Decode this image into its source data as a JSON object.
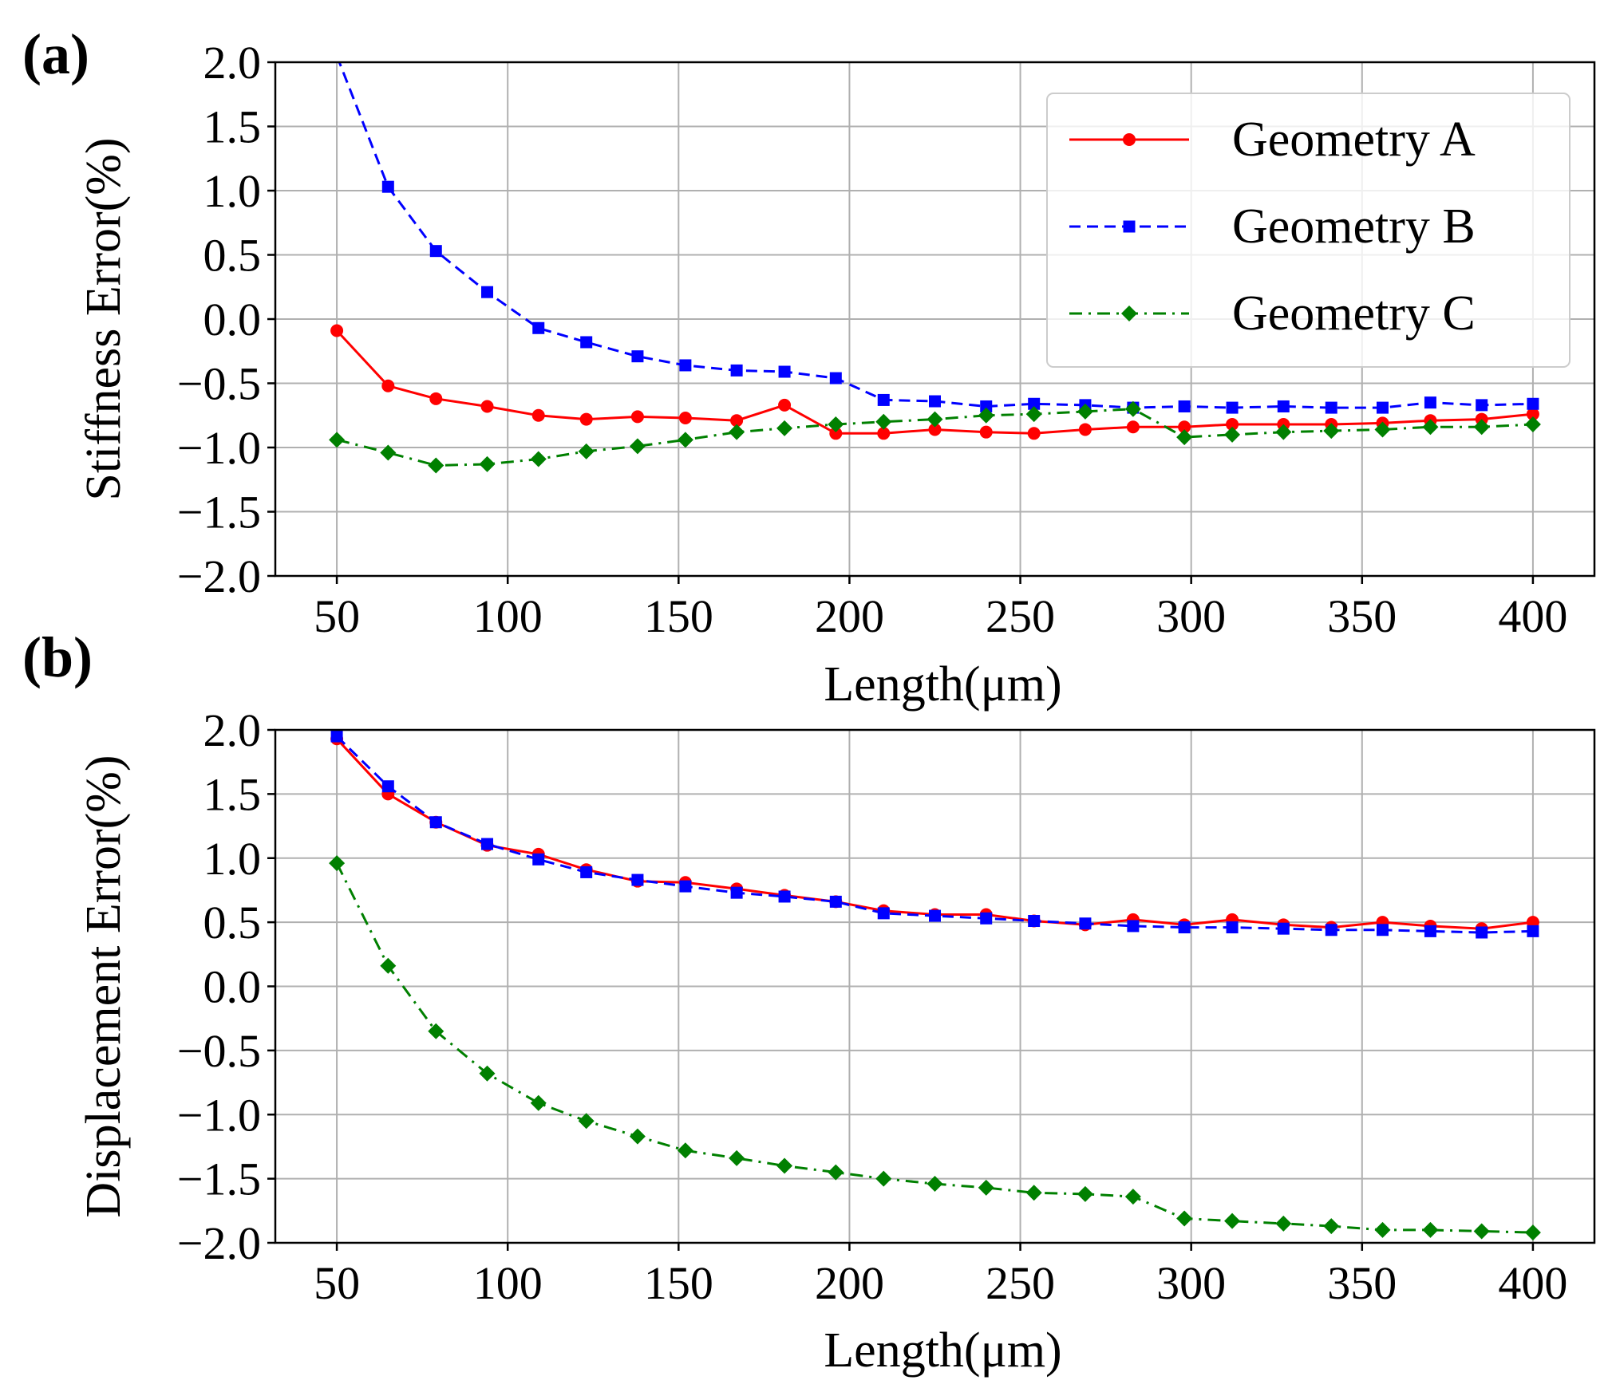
{
  "chart_data": [
    {
      "type": "line",
      "panel_label": "(a)",
      "xlabel": "Length(μm)",
      "ylabel": "Stiffness Error(%)",
      "xlim": [
        32,
        418
      ],
      "ylim": [
        -2.0,
        2.0
      ],
      "xticks": [
        50,
        100,
        150,
        200,
        250,
        300,
        350,
        400
      ],
      "yticks": [
        2.0,
        1.5,
        1.0,
        0.5,
        0.0,
        -0.5,
        -1.0,
        -1.5,
        -2.0
      ],
      "ytick_labels": [
        "2.0",
        "1.5",
        "1.0",
        "0.5",
        "0.0",
        "−0.5",
        "−1.0",
        "−1.5",
        "−2.0"
      ],
      "grid": true,
      "legend_position": "top-right",
      "x": [
        50,
        65,
        79,
        94,
        109,
        123,
        138,
        152,
        167,
        181,
        196,
        210,
        225,
        240,
        254,
        269,
        283,
        298,
        312,
        327,
        341,
        356,
        370,
        385,
        400
      ],
      "series": [
        {
          "name": "Geometry A",
          "color": "#ff0000",
          "marker": "circle",
          "line_style": "solid",
          "values": [
            -0.09,
            -0.52,
            -0.62,
            -0.68,
            -0.75,
            -0.78,
            -0.76,
            -0.77,
            -0.79,
            -0.67,
            -0.89,
            -0.89,
            -0.86,
            -0.88,
            -0.89,
            -0.86,
            -0.84,
            -0.84,
            -0.82,
            -0.82,
            -0.82,
            -0.81,
            -0.79,
            -0.78,
            -0.74
          ]
        },
        {
          "name": "Geometry B",
          "color": "#0000ff",
          "marker": "square",
          "line_style": "dashed",
          "values": [
            2.05,
            1.03,
            0.53,
            0.21,
            -0.07,
            -0.18,
            -0.29,
            -0.36,
            -0.4,
            -0.41,
            -0.46,
            -0.63,
            -0.64,
            -0.68,
            -0.66,
            -0.67,
            -0.69,
            -0.68,
            -0.69,
            -0.68,
            -0.69,
            -0.69,
            -0.65,
            -0.67,
            -0.66
          ]
        },
        {
          "name": "Geometry C",
          "color": "#008000",
          "marker": "diamond",
          "line_style": "dashdot",
          "values": [
            -0.94,
            -1.04,
            -1.14,
            -1.13,
            -1.09,
            -1.03,
            -0.99,
            -0.94,
            -0.88,
            -0.85,
            -0.82,
            -0.8,
            -0.78,
            -0.75,
            -0.74,
            -0.72,
            -0.7,
            -0.92,
            -0.9,
            -0.88,
            -0.87,
            -0.86,
            -0.84,
            -0.84,
            -0.82
          ]
        }
      ]
    },
    {
      "type": "line",
      "panel_label": "(b)",
      "xlabel": "Length(μm)",
      "ylabel": "Displacement Error(%)",
      "xlim": [
        32,
        418
      ],
      "ylim": [
        -2.0,
        2.0
      ],
      "xticks": [
        50,
        100,
        150,
        200,
        250,
        300,
        350,
        400
      ],
      "yticks": [
        2.0,
        1.5,
        1.0,
        0.5,
        0.0,
        -0.5,
        -1.0,
        -1.5,
        -2.0
      ],
      "ytick_labels": [
        "2.0",
        "1.5",
        "1.0",
        "0.5",
        "0.0",
        "−0.5",
        "−1.0",
        "−1.5",
        "−2.0"
      ],
      "grid": true,
      "x": [
        50,
        65,
        79,
        94,
        109,
        123,
        138,
        152,
        167,
        181,
        196,
        210,
        225,
        240,
        254,
        269,
        283,
        298,
        312,
        327,
        341,
        356,
        370,
        385,
        400
      ],
      "series": [
        {
          "name": "Geometry A",
          "color": "#ff0000",
          "marker": "circle",
          "line_style": "solid",
          "values": [
            1.93,
            1.5,
            1.28,
            1.1,
            1.03,
            0.91,
            0.82,
            0.81,
            0.76,
            0.71,
            0.66,
            0.59,
            0.56,
            0.56,
            0.51,
            0.48,
            0.52,
            0.48,
            0.52,
            0.48,
            0.46,
            0.5,
            0.47,
            0.45,
            0.5
          ]
        },
        {
          "name": "Geometry B",
          "color": "#0000ff",
          "marker": "square",
          "line_style": "dashed",
          "values": [
            1.95,
            1.56,
            1.28,
            1.11,
            0.99,
            0.89,
            0.83,
            0.78,
            0.73,
            0.7,
            0.66,
            0.57,
            0.55,
            0.53,
            0.51,
            0.49,
            0.47,
            0.46,
            0.46,
            0.45,
            0.44,
            0.44,
            0.43,
            0.42,
            0.43
          ]
        },
        {
          "name": "Geometry C",
          "color": "#008000",
          "marker": "diamond",
          "line_style": "dashdot",
          "values": [
            0.96,
            0.16,
            -0.35,
            -0.68,
            -0.91,
            -1.05,
            -1.17,
            -1.28,
            -1.34,
            -1.4,
            -1.45,
            -1.5,
            -1.54,
            -1.57,
            -1.61,
            -1.62,
            -1.64,
            -1.81,
            -1.83,
            -1.85,
            -1.87,
            -1.9,
            -1.9,
            -1.91,
            -1.92
          ]
        }
      ]
    }
  ]
}
